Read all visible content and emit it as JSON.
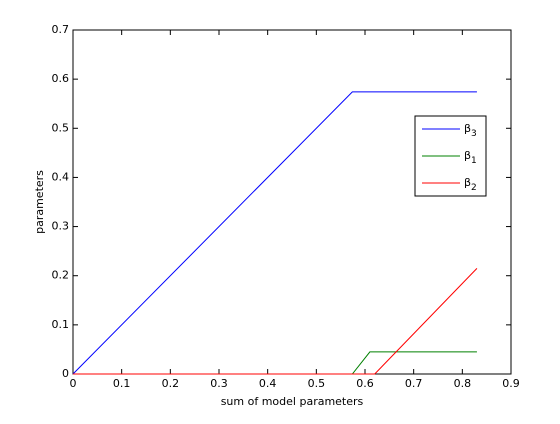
{
  "chart_data": {
    "type": "line",
    "xlabel": "sum of model parameters",
    "ylabel": "parameters",
    "x": [
      0,
      0.574,
      0.61,
      0.62,
      0.83
    ],
    "series": [
      {
        "name": "β3",
        "color": "#0000ff",
        "values": [
          0,
          0.574,
          0.574,
          0.574,
          0.574
        ]
      },
      {
        "name": "β1",
        "color": "#008000",
        "values": [
          0,
          0,
          0.045,
          0.045,
          0.045
        ]
      },
      {
        "name": "β2",
        "color": "#ff0000",
        "values": [
          0,
          0,
          0,
          0,
          0.215
        ]
      }
    ],
    "xlim": [
      0,
      0.9
    ],
    "xticks": [
      0,
      0.1,
      0.2,
      0.3,
      0.4,
      0.5,
      0.6,
      0.7,
      0.8,
      0.9
    ],
    "ylim": [
      0,
      0.7
    ],
    "yticks": [
      0,
      0.1,
      0.2,
      0.3,
      0.4,
      0.5,
      0.6,
      0.7
    ],
    "grid": false,
    "legend": "upper right"
  }
}
